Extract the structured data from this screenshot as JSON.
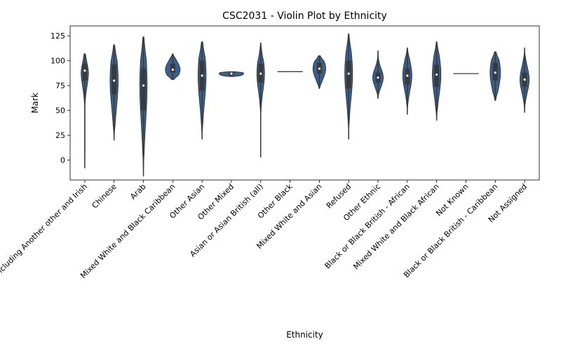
{
  "chart_data": {
    "type": "violin",
    "title": "CSC2031 - Violin Plot by Ethnicity",
    "xlabel": "Ethnicity",
    "ylabel": "Mark",
    "ylim": [
      -20,
      135
    ],
    "yticks": [
      0,
      25,
      50,
      75,
      100,
      125
    ],
    "grid": false,
    "violin_color": "#3a5f8c",
    "box_color": "#3a3a3a",
    "median_color": "#ffffff",
    "categories": [
      "White including Another other and Irish",
      "Chinese",
      "Arab",
      "Mixed White and Black Caribbean",
      "Other Asian",
      "Other Mixed",
      "Asian or Asian British (all)",
      "Other Black",
      "Mixed White and Asian",
      "Refused",
      "Other Ethnic",
      "Black or Black British - African",
      "Mixed White and Black African",
      "Not Known",
      "Black or Black British - Caribbean",
      "Not Assigned"
    ],
    "stats": [
      {
        "min": -8,
        "q1": 80,
        "median": 90,
        "q3": 97,
        "max": 107
      },
      {
        "min": 20,
        "q1": 66,
        "median": 80,
        "q3": 96,
        "max": 116
      },
      {
        "min": -16,
        "q1": 50,
        "median": 75,
        "q3": 92,
        "max": 124
      },
      {
        "min": 81,
        "q1": 88,
        "median": 91,
        "q3": 97,
        "max": 107
      },
      {
        "min": 21,
        "q1": 70,
        "median": 85,
        "q3": 100,
        "max": 119
      },
      {
        "min": 84,
        "q1": 85,
        "median": 87,
        "q3": 88,
        "max": 89
      },
      {
        "min": 3,
        "q1": 78,
        "median": 87,
        "q3": 97,
        "max": 118
      },
      {
        "min": 89,
        "q1": 89,
        "median": 89,
        "q3": 89,
        "max": 89
      },
      {
        "min": 72,
        "q1": 87,
        "median": 92,
        "q3": 98,
        "max": 105
      },
      {
        "min": 21,
        "q1": 72,
        "median": 87,
        "q3": 100,
        "max": 127
      },
      {
        "min": 62,
        "q1": 78,
        "median": 83,
        "q3": 88,
        "max": 110
      },
      {
        "min": 46,
        "q1": 76,
        "median": 85,
        "q3": 92,
        "max": 113
      },
      {
        "min": 40,
        "q1": 74,
        "median": 86,
        "q3": 96,
        "max": 119
      },
      {
        "min": 87,
        "q1": 87,
        "median": 87,
        "q3": 87,
        "max": 87
      },
      {
        "min": 60,
        "q1": 80,
        "median": 88,
        "q3": 98,
        "max": 109
      },
      {
        "min": 48,
        "q1": 74,
        "median": 81,
        "q3": 88,
        "max": 113
      }
    ]
  }
}
